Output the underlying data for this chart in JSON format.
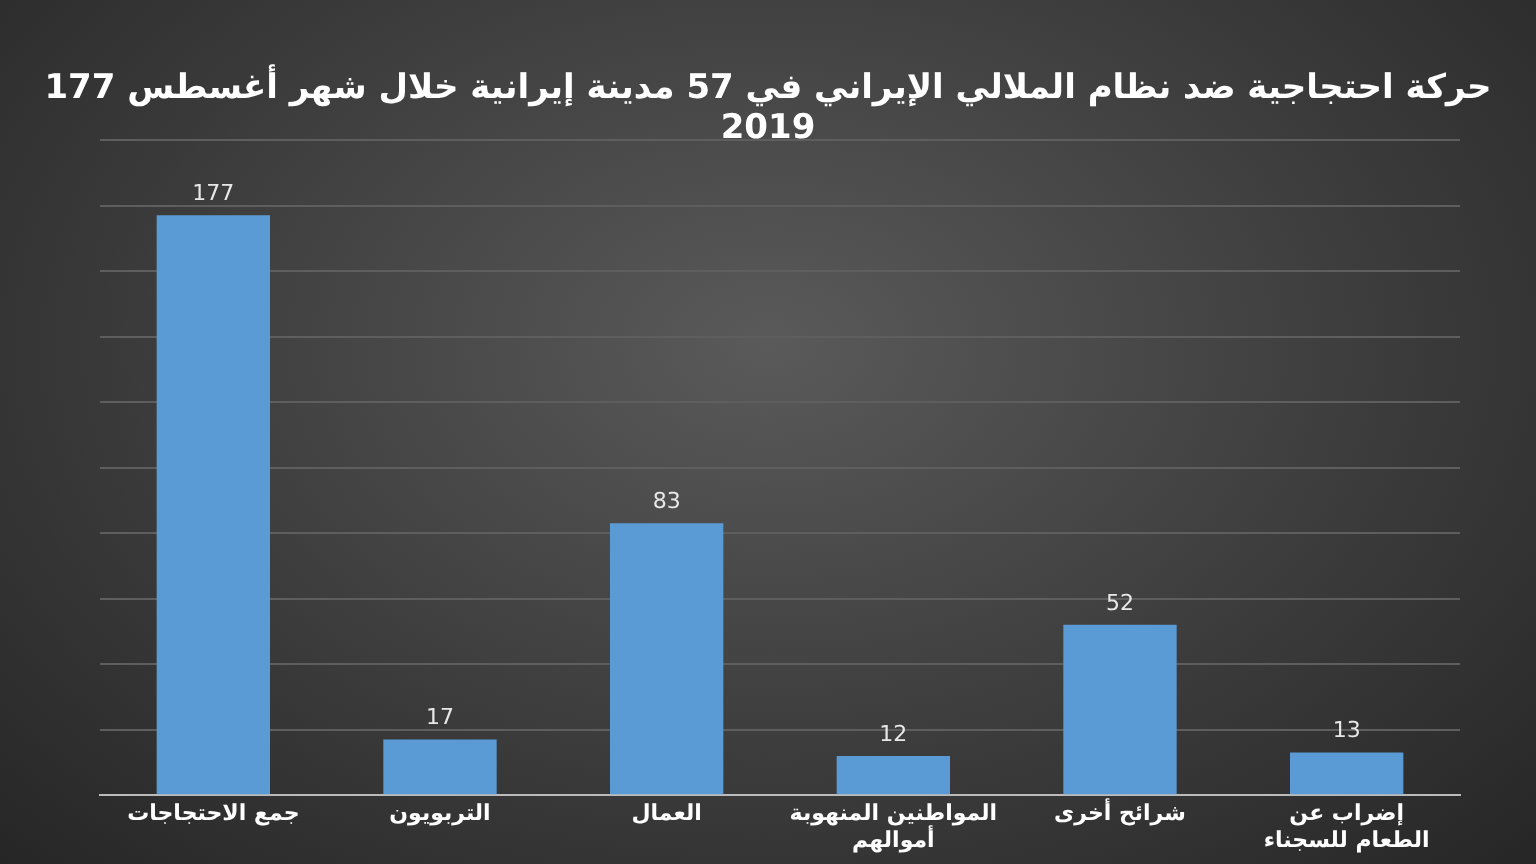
{
  "chart_data": {
    "type": "bar",
    "title": "177 حركة احتجاجية ضد نظام الملالي الإيراني في 57 مدينة إيرانية خلال شهر أغسطس 2019",
    "categories": [
      "جمع الاحتجاجات",
      "التربويون",
      "العمال",
      "المواطنين المنهوبة أموالهم",
      "شرائح أخرى",
      "إضراب عن الطعام للسجناء"
    ],
    "values": [
      177,
      17,
      83,
      12,
      52,
      13
    ],
    "color": "#5b9bd5",
    "ylim": [
      0,
      200
    ],
    "yticks": [
      {
        "value": 0,
        "label": null
      },
      {
        "value": 20,
        "label": null
      },
      {
        "value": 40,
        "label": null
      },
      {
        "value": 60,
        "label": null
      },
      {
        "value": 80,
        "label": null
      },
      {
        "value": 100,
        "label": null
      },
      {
        "value": 120,
        "label": null
      },
      {
        "value": 140,
        "label": null
      },
      {
        "value": 160,
        "label": null
      },
      {
        "value": 180,
        "label": null
      },
      {
        "value": 200,
        "label": null
      }
    ],
    "tick_labels": "x",
    "grid": "y",
    "data_labels": true,
    "legend": false
  }
}
